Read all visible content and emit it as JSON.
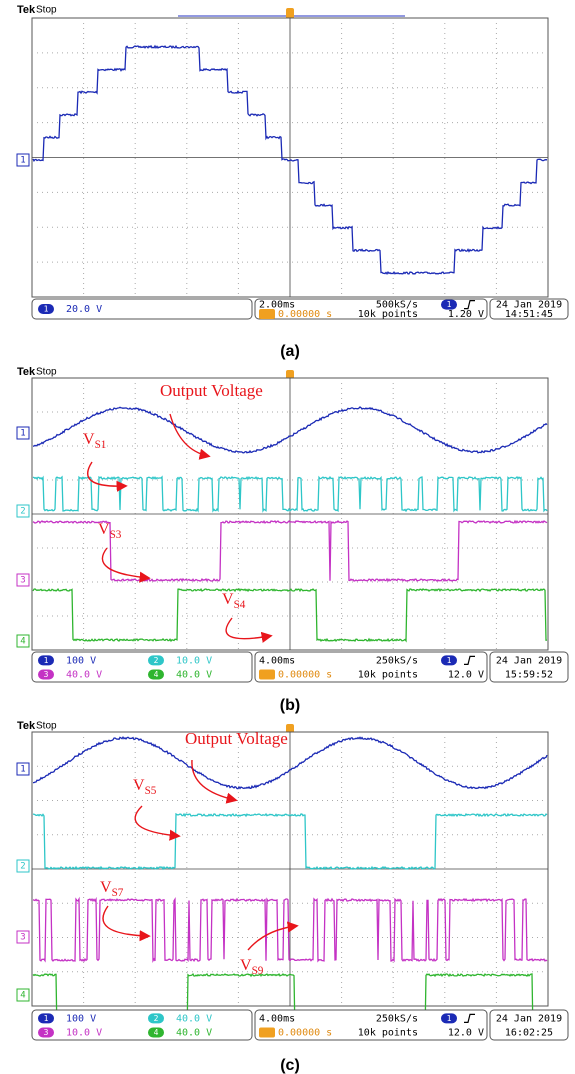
{
  "panels": [
    {
      "label": "(a)",
      "brand": "Tek",
      "state": "Stop",
      "markers": [
        "1"
      ],
      "channels": [
        {
          "num": "1",
          "scale": "20.0 V"
        }
      ],
      "timebase": "2.00ms",
      "rate": "500kS/s",
      "trigger_pos": "0.00000 s",
      "points": "10k points",
      "trigger_channel": "1",
      "trigger_level": "1.20 V",
      "date": "24 Jan  2019",
      "time": "14:51:45",
      "annotations": []
    },
    {
      "label": "(b)",
      "brand": "Tek",
      "state": "Stop",
      "markers": [
        "1",
        "2",
        "3",
        "4"
      ],
      "channels": [
        {
          "num": "1",
          "scale": "100 V"
        },
        {
          "num": "2",
          "scale": "10.0 V"
        },
        {
          "num": "3",
          "scale": "40.0 V"
        },
        {
          "num": "4",
          "scale": "40.0 V"
        }
      ],
      "timebase": "4.00ms",
      "rate": "250kS/s",
      "trigger_pos": "0.00000 s",
      "points": "10k points",
      "trigger_channel": "1",
      "trigger_level": "12.0 V",
      "date": "24 Jan  2019",
      "time": "15:59:52",
      "annotations": [
        {
          "text": "Output Voltage"
        },
        {
          "text": "V",
          "sub": "S1"
        },
        {
          "text": "V",
          "sub": "S3"
        },
        {
          "text": "V",
          "sub": "S4"
        }
      ]
    },
    {
      "label": "(c)",
      "brand": "Tek",
      "state": "Stop",
      "markers": [
        "1",
        "2",
        "3",
        "4"
      ],
      "channels": [
        {
          "num": "1",
          "scale": "100 V"
        },
        {
          "num": "2",
          "scale": "40.0 V"
        },
        {
          "num": "3",
          "scale": "10.0 V"
        },
        {
          "num": "4",
          "scale": "40.0 V"
        }
      ],
      "timebase": "4.00ms",
      "rate": "250kS/s",
      "trigger_pos": "0.00000 s",
      "points": "10k points",
      "trigger_channel": "1",
      "trigger_level": "12.0 V",
      "date": "24 Jan  2019",
      "time": "16:02:25",
      "annotations": [
        {
          "text": "Output Voltage"
        },
        {
          "text": "V",
          "sub": "S5"
        },
        {
          "text": "V",
          "sub": "S7"
        },
        {
          "text": "V",
          "sub": "S9"
        }
      ]
    }
  ]
}
